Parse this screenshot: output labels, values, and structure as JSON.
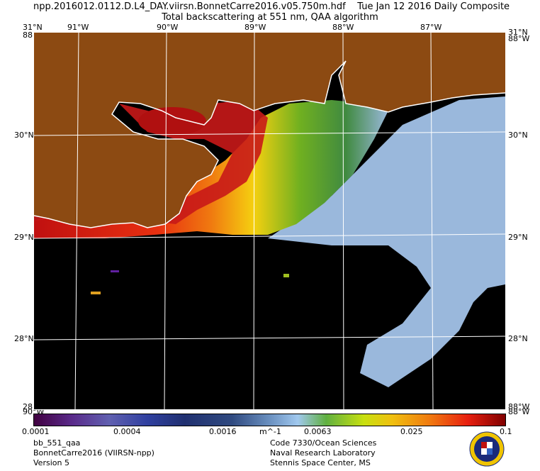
{
  "title": {
    "filename": "npp.2016012.0112.D.L4_DAY.viirsn.BonnetCarre2016.v05.750m.hdf",
    "date": "Tue Jan 12 2016 Daily Composite",
    "subtitle": "Total backscattering at 551 nm, QAA algorithm"
  },
  "map": {
    "lon_labels": [
      "91°W",
      "90°W",
      "89°W",
      "88°W",
      "87°W"
    ],
    "lat_labels": [
      "30°N",
      "29°N",
      "28°N"
    ],
    "corner_top_left_lat": "31°N",
    "corner_top_left_lon": "88°W",
    "corner_top_right_lat": "31°N",
    "corner_top_right_lon": "88°W",
    "corner_bottom_left_lat": "28°N",
    "corner_bottom_left_lon": "90°W",
    "corner_bottom_right_lat": "88°W",
    "corner_bottom_right_lon": "88°W",
    "colors": {
      "land": "#8c4a12",
      "no_data": "#000000",
      "coast": "#ffffff",
      "low": "#9ab8dc",
      "high": "#d01010"
    }
  },
  "colorbar": {
    "ticks": [
      "0.0001",
      "0.0004",
      "0.0016",
      "0.0063",
      "0.025",
      "0.1"
    ],
    "unit": "m^-1",
    "scale": "log"
  },
  "footer": {
    "left": [
      "bb_551_qaa",
      "BonnetCarre2016 (VIIRSN-npp)",
      "Version 5"
    ],
    "right": [
      "Code 7330/Ocean Sciences",
      "Naval Research Laboratory",
      "Stennis Space Center, MS"
    ]
  }
}
